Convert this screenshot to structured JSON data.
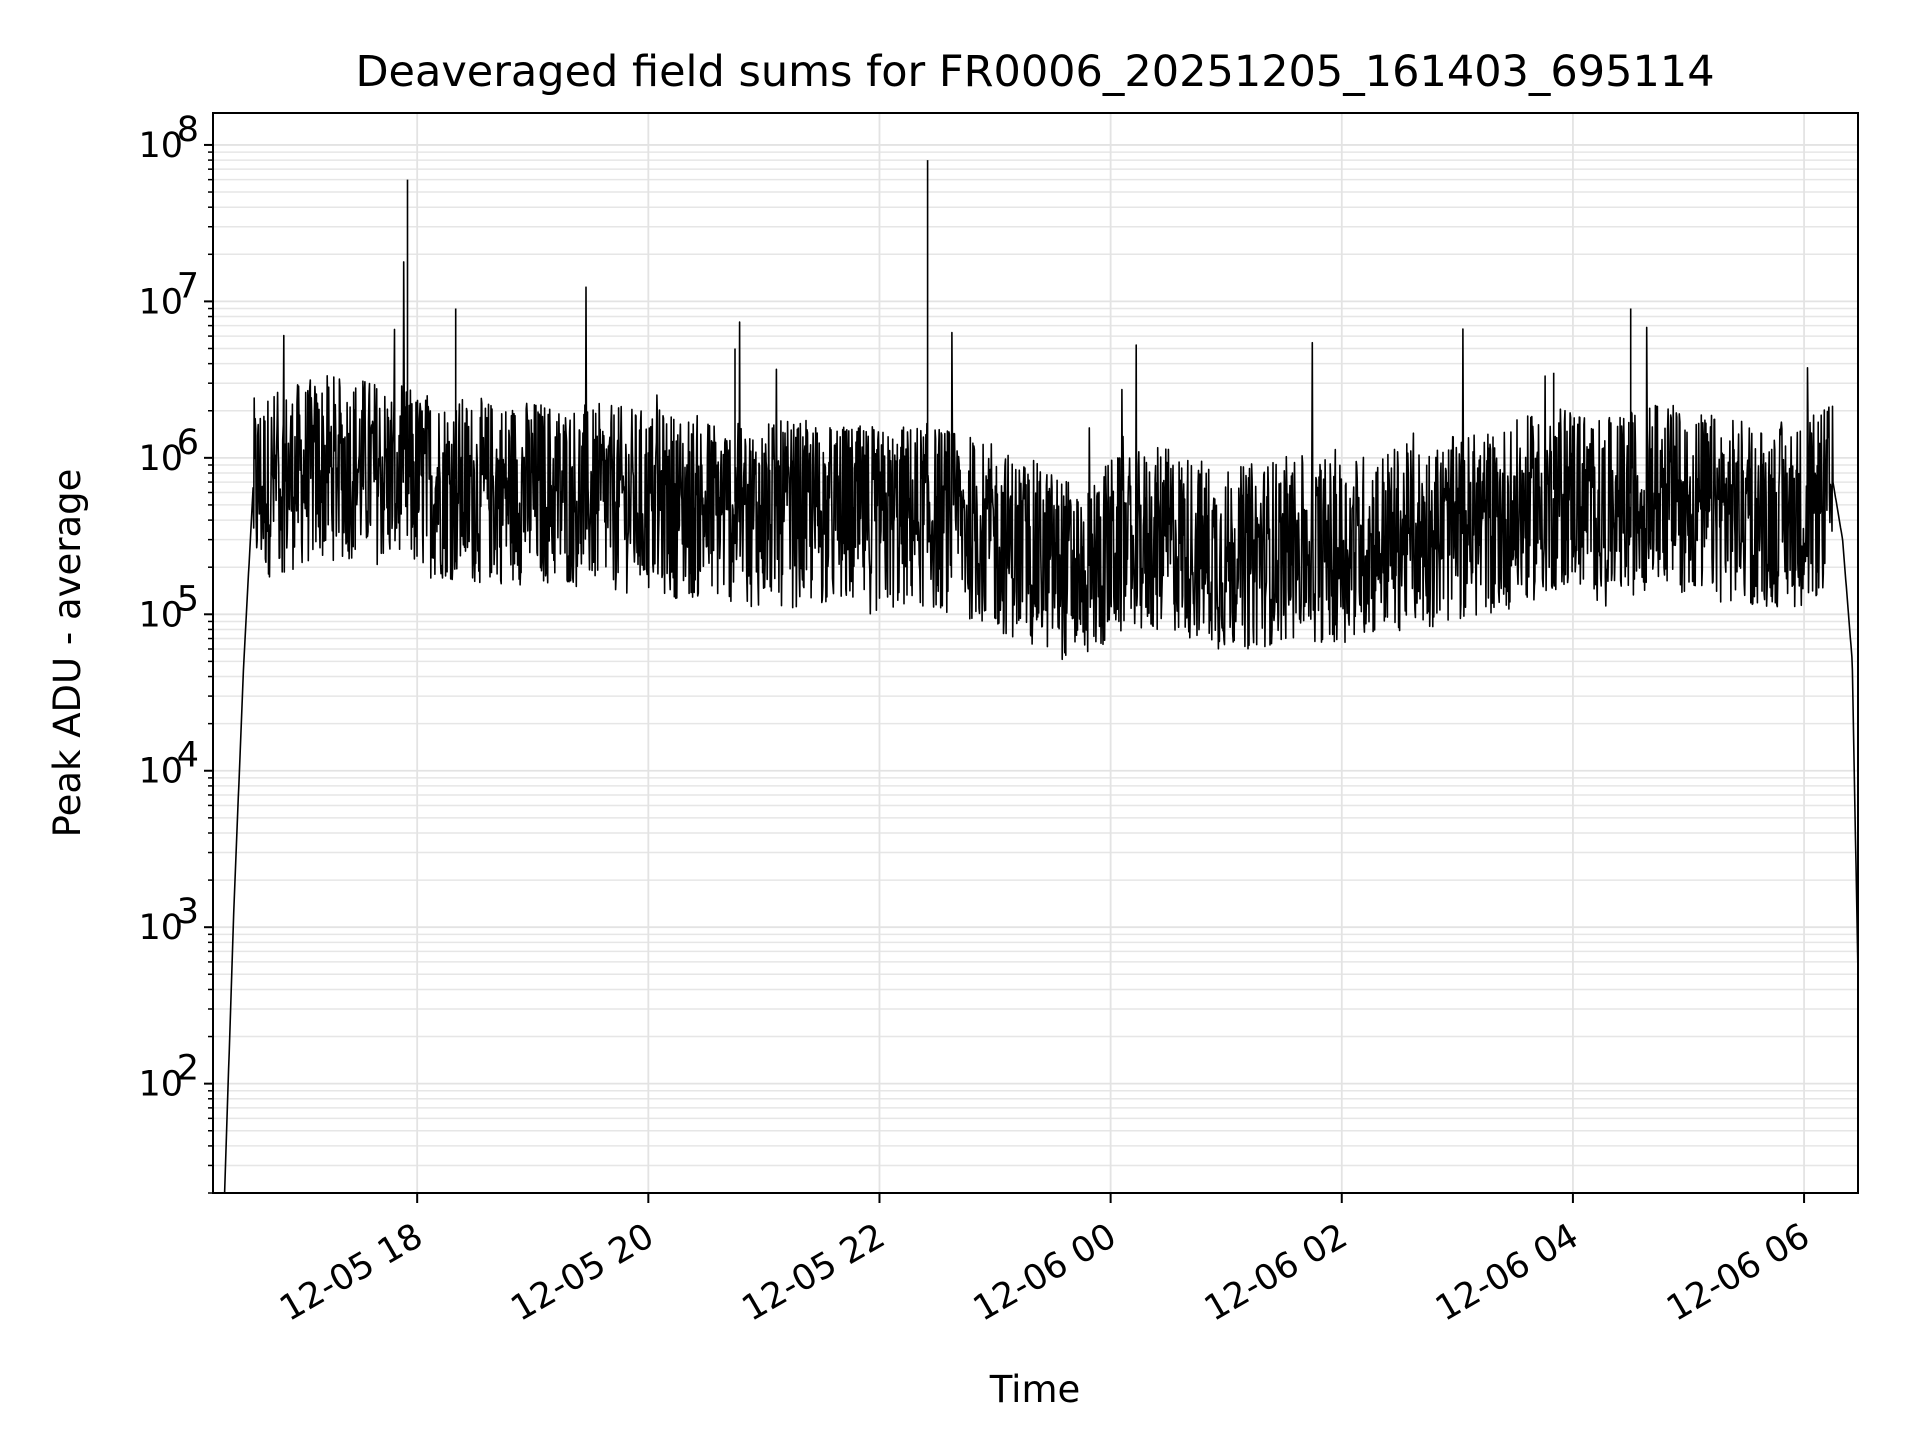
{
  "chart_data": {
    "type": "line",
    "title": "Deaveraged field sums for FR0006_20251205_161403_695114",
    "xlabel": "Time",
    "ylabel": "Peak ADU - average",
    "yscale": "log",
    "ylim": [
      20,
      160000000
    ],
    "xlim": [
      "2025-12-05 16:14",
      "2025-12-06 06:28"
    ],
    "x_ticks": [
      "12-05 18",
      "12-05 20",
      "12-05 22",
      "12-06 00",
      "12-06 02",
      "12-06 04",
      "12-06 06"
    ],
    "y_ticks": [
      100,
      1000,
      10000,
      100000,
      1000000,
      10000000,
      100000000
    ],
    "grid": true,
    "line_color": "#000000",
    "series": [
      {
        "x": [
          "2025-12-05 16:20",
          "2025-12-05 16:25",
          "2025-12-05 16:30",
          "2025-12-05 16:35",
          "2025-12-05 16:45",
          "2025-12-05 17:00",
          "2025-12-05 17:15",
          "2025-12-05 17:30",
          "2025-12-05 17:45",
          "2025-12-05 17:55",
          "2025-12-05 18:00",
          "2025-12-05 18:20",
          "2025-12-05 18:30",
          "2025-12-05 19:00",
          "2025-12-05 19:30",
          "2025-12-05 20:00",
          "2025-12-05 20:30",
          "2025-12-05 20:45",
          "2025-12-05 21:00",
          "2025-12-05 21:30",
          "2025-12-05 22:00",
          "2025-12-05 22:20",
          "2025-12-05 22:25",
          "2025-12-05 22:40",
          "2025-12-05 23:00",
          "2025-12-05 23:30",
          "2025-12-05 23:45",
          "2025-12-06 00:00",
          "2025-12-06 00:30",
          "2025-12-06 00:45",
          "2025-12-06 01:00",
          "2025-12-06 01:30",
          "2025-12-06 02:00",
          "2025-12-06 02:30",
          "2025-12-06 03:00",
          "2025-12-06 03:30",
          "2025-12-06 03:50",
          "2025-12-06 04:00",
          "2025-12-06 04:15",
          "2025-12-06 04:30",
          "2025-12-06 04:45",
          "2025-12-06 05:00",
          "2025-12-06 05:30",
          "2025-12-06 06:00",
          "2025-12-06 06:10",
          "2025-12-06 06:15",
          "2025-12-06 06:20",
          "2025-12-06 06:25",
          "2025-12-06 06:28"
        ],
        "y": [
          20,
          1500,
          50000,
          700000,
          800000,
          900000,
          1000000,
          1000000,
          900000,
          60000000,
          800000,
          9000000,
          700000,
          700000,
          650000,
          600000,
          550000,
          5000000,
          500000,
          500000,
          450000,
          500000,
          80000000,
          450000,
          350000,
          250000,
          200000,
          300000,
          350000,
          300000,
          250000,
          300000,
          300000,
          350000,
          400000,
          500000,
          3500000,
          700000,
          500000,
          9000000,
          700000,
          600000,
          500000,
          500000,
          600000,
          700000,
          300000,
          50000,
          500
        ]
      }
    ]
  }
}
